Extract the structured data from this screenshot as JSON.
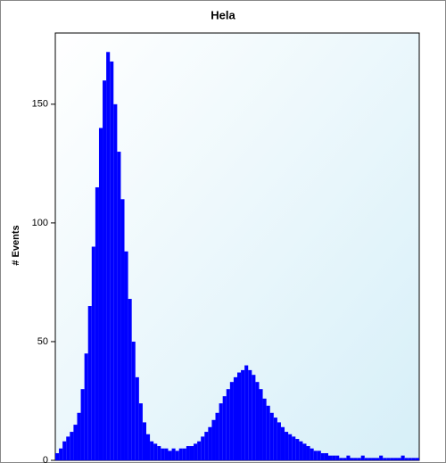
{
  "chart_data": {
    "type": "histogram",
    "title": "Hela",
    "y_label": "# Events",
    "color": "#0000ff",
    "bins": [
      0,
      1,
      2,
      3,
      4,
      5,
      6,
      7,
      8,
      9,
      10,
      11,
      12,
      13,
      14,
      15,
      16,
      17,
      18,
      19,
      20,
      21,
      22,
      23,
      24,
      25,
      26,
      27,
      28,
      29,
      30,
      31,
      32,
      33,
      34,
      35,
      36,
      37,
      38,
      39,
      40,
      41,
      42,
      43,
      44,
      45,
      46,
      47,
      48,
      49,
      50,
      51,
      52,
      53,
      54,
      55,
      56,
      57,
      58,
      59,
      60,
      61,
      62,
      63,
      64,
      65,
      66,
      67,
      68,
      69,
      70,
      71,
      72,
      73,
      74,
      75,
      76,
      77,
      78,
      79,
      80,
      81,
      82,
      83,
      84,
      85,
      86,
      87,
      88,
      89,
      90,
      91,
      92,
      93,
      94,
      95,
      96,
      97,
      98,
      99,
      100
    ],
    "values": [
      3,
      5,
      8,
      10,
      12,
      15,
      20,
      30,
      45,
      65,
      90,
      115,
      140,
      160,
      172,
      168,
      150,
      130,
      110,
      88,
      68,
      50,
      35,
      24,
      16,
      11,
      8,
      7,
      6,
      5,
      5,
      4,
      5,
      4,
      5,
      5,
      6,
      6,
      7,
      8,
      10,
      12,
      14,
      17,
      20,
      24,
      27,
      30,
      33,
      35,
      37,
      38,
      40,
      38,
      36,
      33,
      30,
      26,
      23,
      20,
      18,
      16,
      14,
      12,
      11,
      10,
      9,
      8,
      7,
      6,
      5,
      4,
      4,
      3,
      3,
      2,
      2,
      2,
      1,
      1,
      2,
      1,
      1,
      1,
      2,
      1,
      1,
      1,
      1,
      2,
      1,
      1,
      1,
      1,
      1,
      2,
      1,
      1,
      1,
      1
    ],
    "xlim": [
      0,
      100
    ],
    "ylim": [
      0,
      180
    ],
    "yticks": [
      0,
      50,
      100,
      150
    ]
  }
}
